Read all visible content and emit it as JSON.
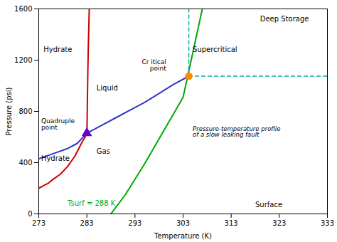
{
  "chart_data": {
    "type": "line",
    "xlabel": "Temperature (K)",
    "ylabel": "Pressure (psi)",
    "xlim": [
      273,
      333
    ],
    "ylim": [
      0,
      1600
    ],
    "xticks": [
      273,
      283,
      293,
      303,
      313,
      323,
      333
    ],
    "yticks": [
      0,
      400,
      800,
      1200,
      1600
    ],
    "series": [
      {
        "type": "line",
        "color": "#cc0000",
        "x": [
          273.0,
          274.0,
          275.0,
          276.0,
          277.5,
          279.0,
          280.5,
          282.0,
          282.8,
          283.0,
          283.05,
          283.1,
          283.2,
          283.3,
          283.5
        ],
        "values": [
          200,
          220,
          240,
          270,
          310,
          370,
          450,
          560,
          610,
          630,
          700,
          850,
          1100,
          1300,
          1600
        ]
      },
      {
        "type": "line",
        "color": "#3333cc",
        "x": [
          273.0,
          276.0,
          279.0,
          281.0,
          283.0,
          286.0,
          289.0,
          292.0,
          295.0,
          298.0,
          301.0,
          304.2
        ],
        "values": [
          430,
          470,
          510,
          550,
          630,
          690,
          750,
          810,
          870,
          940,
          1010,
          1075
        ]
      },
      {
        "type": "line",
        "color": "#00aa00",
        "x": [
          288.0,
          291.0,
          295.0,
          299.0,
          303.0,
          307.0
        ],
        "values": [
          0,
          150,
          390,
          650,
          910,
          1600
        ]
      },
      {
        "type": "line",
        "color": "#00aaaa",
        "line_style": "dashed",
        "x": [
          304.2,
          333
        ],
        "values": [
          1075,
          1075
        ]
      },
      {
        "type": "line",
        "color": "#00aaaa",
        "line_style": "dashed",
        "x": [
          304.2,
          304.2
        ],
        "values": [
          1075,
          1600
        ]
      },
      {
        "type": "scatter",
        "color": "#ff8800",
        "marker": "circle",
        "x": [
          304.2
        ],
        "values": [
          1075
        ]
      },
      {
        "type": "scatter",
        "color": "#6600cc",
        "marker": "triangle",
        "x": [
          283.0
        ],
        "values": [
          630
        ]
      }
    ],
    "annotations": [
      {
        "text": "Hydrate",
        "x": 274,
        "y": 1280,
        "color": "#000000"
      },
      {
        "text": "Hydrate",
        "x": 273.5,
        "y": 430,
        "color": "#000000"
      },
      {
        "text": "Liquid",
        "x": 285,
        "y": 980,
        "color": "#000000"
      },
      {
        "text": "Gas",
        "x": 285,
        "y": 490,
        "color": "#000000"
      },
      {
        "text": "Supercritical",
        "x": 305,
        "y": 1280,
        "color": "#000000"
      },
      {
        "text": "Deep Storage",
        "x": 319,
        "y": 1540,
        "color": "#000000"
      },
      {
        "text": "Surface",
        "x": 318,
        "y": 70,
        "color": "#000000"
      },
      {
        "text": "Cr itical\npoint",
        "x": 299.5,
        "y": 1120,
        "color": "#000000"
      },
      {
        "text": "Quadruple\npoint",
        "x": 273.5,
        "y": 700,
        "color": "#000000"
      },
      {
        "text": "Pressure-temperature profile\nof a slow leaking fault",
        "x": 305,
        "y": 640,
        "color": "#000000"
      },
      {
        "text": "Tsurf = 288 K",
        "x": 279,
        "y": 80,
        "color": "#00aa00"
      }
    ]
  }
}
